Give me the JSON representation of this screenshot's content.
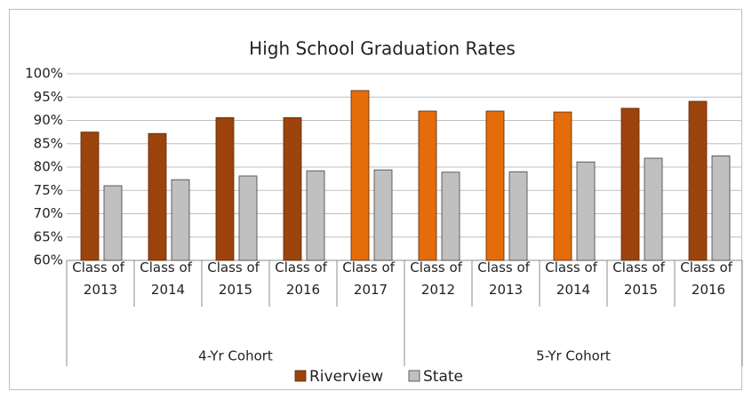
{
  "chart_data": {
    "type": "bar",
    "title": "High School Graduation Rates",
    "categories": [
      "Class of 2013",
      "Class of 2014",
      "Class of 2015",
      "Class of 2016",
      "Class of 2017",
      "Class of 2012",
      "Class of 2013",
      "Class of 2014",
      "Class of 2015",
      "Class of 2016"
    ],
    "groups": [
      {
        "label": "4-Yr Cohort",
        "size": 5
      },
      {
        "label": "5-Yr Cohort",
        "size": 5
      }
    ],
    "series": [
      {
        "name": "Riverview",
        "color": "#9c440c",
        "colors": [
          "#9c440c",
          "#9c440c",
          "#9c440c",
          "#9c440c",
          "#e46c0a",
          "#e46c0a",
          "#e46c0a",
          "#e46c0a",
          "#9c440c",
          "#9c440c"
        ],
        "values": [
          87.5,
          87.2,
          90.6,
          90.6,
          96.4,
          92.0,
          92.0,
          91.8,
          92.6,
          94.1
        ]
      },
      {
        "name": "State",
        "color": "#c0c0c0",
        "values": [
          76.0,
          77.3,
          78.1,
          79.2,
          79.4,
          78.9,
          79.0,
          81.1,
          81.9,
          82.4
        ]
      }
    ],
    "ylim": [
      60,
      100
    ],
    "yticks": [
      {
        "value": 60,
        "label": "60%"
      },
      {
        "value": 65,
        "label": "65%"
      },
      {
        "value": 70,
        "label": "70%"
      },
      {
        "value": 75,
        "label": "75%"
      },
      {
        "value": 80,
        "label": "80%"
      },
      {
        "value": 85,
        "label": "85%"
      },
      {
        "value": 90,
        "label": "90%"
      },
      {
        "value": 95,
        "label": "95%"
      },
      {
        "value": 100,
        "label": "100%"
      }
    ],
    "grid": true,
    "legend": "bottom"
  }
}
